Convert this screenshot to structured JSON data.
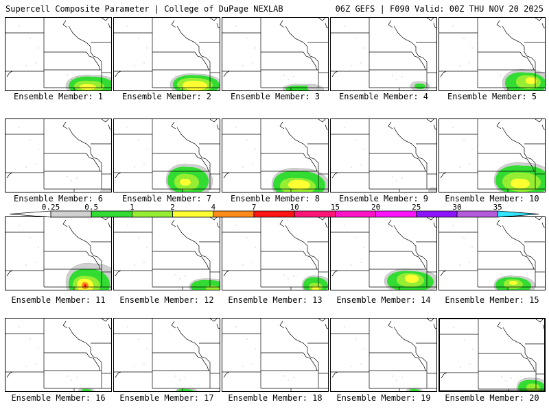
{
  "header": {
    "left": "Supercell Composite Parameter | College of DuPage NEXLAB",
    "right": "06Z GEFS | F090 Valid: 00Z THU NOV 20 2025"
  },
  "panels": [
    {
      "label": "Ensemble Member: 1"
    },
    {
      "label": "Ensemble Member: 2"
    },
    {
      "label": "Ensemble Member: 3"
    },
    {
      "label": "Ensemble Member: 4"
    },
    {
      "label": "Ensemble Member: 5"
    },
    {
      "label": "Ensemble Member: 6"
    },
    {
      "label": "Ensemble Member: 7"
    },
    {
      "label": "Ensemble Member: 8"
    },
    {
      "label": "Ensemble Member: 9"
    },
    {
      "label": "Ensemble Member: 10"
    },
    {
      "label": "Ensemble Member: 11"
    },
    {
      "label": "Ensemble Member: 12"
    },
    {
      "label": "Ensemble Member: 13"
    },
    {
      "label": "Ensemble Member: 14"
    },
    {
      "label": "Ensemble Member: 15"
    },
    {
      "label": "Ensemble Member: 16"
    },
    {
      "label": "Ensemble Member: 17"
    },
    {
      "label": "Ensemble Member: 18"
    },
    {
      "label": "Ensemble Member: 19"
    },
    {
      "label": "Ensemble Member: 20"
    }
  ],
  "colorbar": {
    "ticks": [
      "0.25",
      "0.5",
      "1",
      "2",
      "4",
      "7",
      "10",
      "15",
      "20",
      "25",
      "30",
      "35"
    ],
    "colors": [
      "#d0d0d0",
      "#32dc32",
      "#96ee32",
      "#ffff32",
      "#ff8c19",
      "#ff1414",
      "#ff1478",
      "#ff14c8",
      "#ff14ff",
      "#8c14ff",
      "#b45adc",
      "#32e6ff"
    ]
  },
  "colors": {
    "level1": "#d0d0d0",
    "level2": "#32dc32",
    "level3": "#96ee32",
    "level4": "#ffff32",
    "level5": "#ff8c19",
    "level6": "#ff1414"
  }
}
